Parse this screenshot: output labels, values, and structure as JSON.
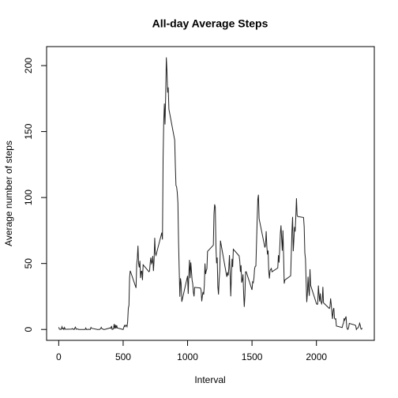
{
  "chart_data": {
    "type": "line",
    "title": "All-day Average Steps",
    "xlabel": "Interval",
    "ylabel": "Average number of steps",
    "x": [
      0,
      5,
      10,
      15,
      20,
      25,
      30,
      35,
      40,
      45,
      50,
      55,
      100,
      105,
      110,
      115,
      120,
      125,
      130,
      135,
      140,
      145,
      150,
      155,
      200,
      205,
      210,
      215,
      220,
      225,
      230,
      235,
      240,
      245,
      250,
      255,
      300,
      305,
      310,
      315,
      320,
      325,
      330,
      335,
      340,
      345,
      350,
      355,
      400,
      405,
      410,
      415,
      420,
      425,
      430,
      435,
      440,
      445,
      450,
      455,
      500,
      505,
      510,
      515,
      520,
      525,
      530,
      535,
      540,
      545,
      550,
      555,
      600,
      605,
      610,
      615,
      620,
      625,
      630,
      635,
      640,
      645,
      650,
      655,
      700,
      705,
      710,
      715,
      720,
      725,
      730,
      735,
      740,
      745,
      750,
      755,
      800,
      805,
      810,
      815,
      820,
      825,
      830,
      835,
      840,
      845,
      850,
      855,
      900,
      905,
      910,
      915,
      920,
      925,
      930,
      935,
      940,
      945,
      950,
      955,
      1000,
      1005,
      1010,
      1015,
      1020,
      1025,
      1030,
      1035,
      1040,
      1045,
      1050,
      1055,
      1100,
      1105,
      1110,
      1115,
      1120,
      1125,
      1130,
      1135,
      1140,
      1145,
      1150,
      1155,
      1200,
      1205,
      1210,
      1215,
      1220,
      1225,
      1230,
      1235,
      1240,
      1245,
      1250,
      1255,
      1300,
      1305,
      1310,
      1315,
      1320,
      1325,
      1330,
      1335,
      1340,
      1345,
      1350,
      1355,
      1400,
      1405,
      1410,
      1415,
      1420,
      1425,
      1430,
      1435,
      1440,
      1445,
      1450,
      1455,
      1500,
      1505,
      1510,
      1515,
      1520,
      1525,
      1530,
      1535,
      1540,
      1545,
      1550,
      1555,
      1600,
      1605,
      1610,
      1615,
      1620,
      1625,
      1630,
      1635,
      1640,
      1645,
      1650,
      1655,
      1700,
      1705,
      1710,
      1715,
      1720,
      1725,
      1730,
      1735,
      1740,
      1745,
      1750,
      1755,
      1800,
      1805,
      1810,
      1815,
      1820,
      1825,
      1830,
      1835,
      1840,
      1845,
      1850,
      1855,
      1900,
      1905,
      1910,
      1915,
      1920,
      1925,
      1930,
      1935,
      1940,
      1945,
      1950,
      1955,
      2000,
      2005,
      2010,
      2015,
      2020,
      2025,
      2030,
      2035,
      2040,
      2045,
      2050,
      2055,
      2100,
      2105,
      2110,
      2115,
      2120,
      2125,
      2130,
      2135,
      2140,
      2145,
      2150,
      2155,
      2200,
      2205,
      2210,
      2215,
      2220,
      2225,
      2230,
      2235,
      2240,
      2245,
      2250,
      2255,
      2300,
      2305,
      2310,
      2315,
      2320,
      2325,
      2330,
      2335,
      2340,
      2345,
      2350,
      2355
    ],
    "values": [
      1.7,
      0.3,
      0.1,
      0.2,
      0.1,
      2.1,
      0.5,
      0.9,
      0,
      1.5,
      0.3,
      0.1,
      0.3,
      0.7,
      0.2,
      0.3,
      0,
      1.1,
      1.8,
      0.2,
      0.2,
      0.4,
      0.3,
      0,
      0,
      0,
      1.1,
      0,
      0,
      0.1,
      0,
      0.2,
      0,
      0,
      1.5,
      0.9,
      0,
      0,
      0,
      0,
      0.2,
      0.6,
      1.6,
      0.6,
      0.5,
      0.1,
      0,
      0,
      1.2,
      0.9,
      2.6,
      0,
      0.3,
      0.4,
      4.1,
      0.7,
      3.5,
      0.8,
      3.1,
      1.1,
      0,
      1.6,
      3,
      2.2,
      3.3,
      3,
      2.1,
      6,
      16,
      18.3,
      39.5,
      44.5,
      31.5,
      49.3,
      53.8,
      63.5,
      50,
      47,
      52,
      39,
      44,
      44.2,
      37.4,
      49,
      43.8,
      44.4,
      50.5,
      54.5,
      49.9,
      51,
      55.7,
      44.3,
      52.3,
      69.5,
      57.8,
      56.2,
      73.4,
      68.2,
      129.4,
      157.5,
      171.2,
      155.4,
      177.3,
      206.2,
      195.9,
      179.6,
      183.4,
      167,
      143.5,
      124,
      109.1,
      108.1,
      103.7,
      95.9,
      66.2,
      45.2,
      24.8,
      38.8,
      35,
      21,
      40.6,
      27,
      42.4,
      52.7,
      38.9,
      50.8,
      44.3,
      37.4,
      34.7,
      28.3,
      25.1,
      31.9,
      31.4,
      29.7,
      21.3,
      25.5,
      28.4,
      26.5,
      33.4,
      50,
      42,
      44.6,
      46,
      59.2,
      63.9,
      87.7,
      94.8,
      92.8,
      63.4,
      50.2,
      54.5,
      32.4,
      26.5,
      37.7,
      45.1,
      67.3,
      42.3,
      39.9,
      43.3,
      41,
      46.2,
      56.4,
      42.8,
      25.1,
      40,
      53.5,
      47.3,
      60.8,
      55.8,
      52,
      43.6,
      48.7,
      35.5,
      37.5,
      41.8,
      27.5,
      17.1,
      26.1,
      43.6,
      43.8,
      30,
      36.1,
      35.5,
      38.8,
      46,
      47.8,
      48.1,
      65.3,
      82.9,
      98.7,
      102.1,
      84,
      62.1,
      64.1,
      74.5,
      63.2,
      56.9,
      59.8,
      43.9,
      38.6,
      44.7,
      45.5,
      46.2,
      43.7,
      46.6,
      56.3,
      50.7,
      61.2,
      72.7,
      78.9,
      68.9,
      59.7,
      75.1,
      56.5,
      34.8,
      37.5,
      40.7,
      58,
      74.7,
      85.3,
      59.3,
      67.8,
      77.7,
      74.2,
      85.3,
      99.5,
      86.6,
      85.6,
      84.9,
      77.8,
      58,
      53.4,
      36.3,
      20.7,
      27.4,
      40,
      30.2,
      25.5,
      45.7,
      33.5,
      19.6,
      19,
      19.3,
      33.3,
      26.8,
      21.2,
      27.3,
      21.3,
      19.5,
      21.3,
      32.3,
      20.2,
      15.9,
      17.2,
      23.5,
      19.2,
      12.5,
      8,
      14.7,
      16.3,
      8.7,
      7.8,
      8.1,
      2.6,
      1.5,
      3.7,
      4.8,
      8.5,
      7.1,
      8.7,
      9.8,
      2.2,
      0.3,
      0.1,
      1.6,
      4.6,
      3.3,
      2.8,
      0,
      0.8,
      1,
      1.6,
      2.6,
      4.7,
      3.3,
      0.6,
      0.2,
      1.1
    ],
    "color": "#222222",
    "xlim": [
      -94.2,
      2449.2
    ],
    "xticks": [
      0,
      500,
      1000,
      1500,
      2000
    ],
    "ylim": [
      -8.25,
      214.4
    ],
    "yticks": [
      0,
      50,
      100,
      150,
      200
    ]
  }
}
